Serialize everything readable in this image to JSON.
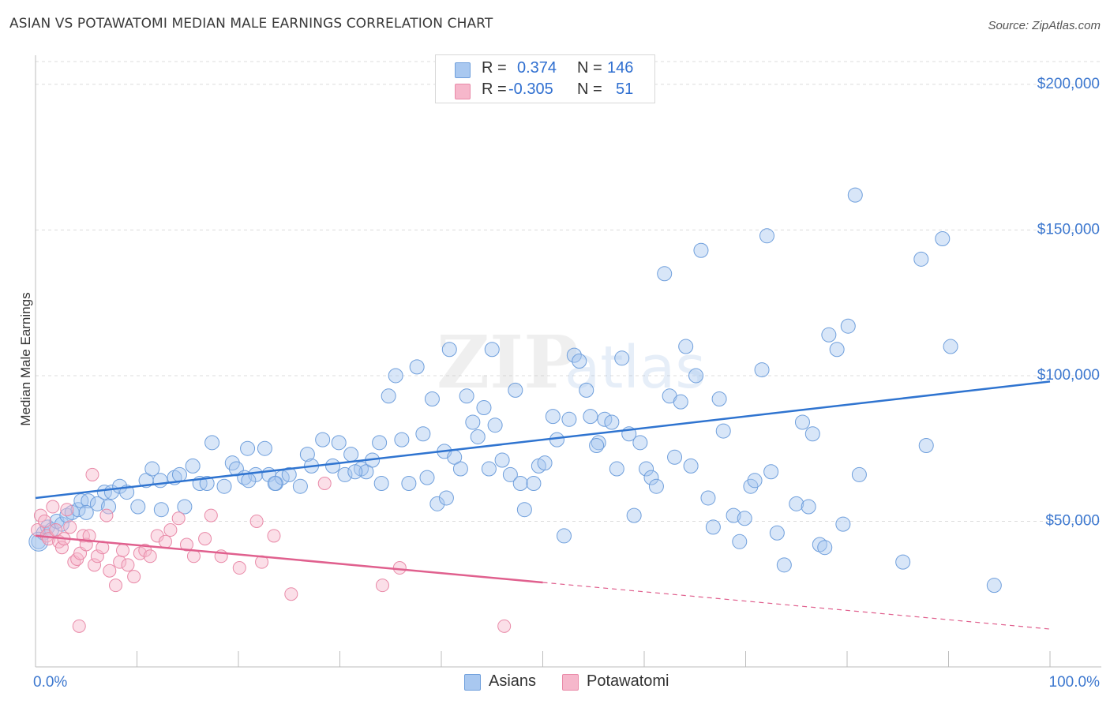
{
  "title": "ASIAN VS POTAWATOMI MEDIAN MALE EARNINGS CORRELATION CHART",
  "source": "Source: ZipAtlas.com",
  "watermark": {
    "zip": "ZIP",
    "atlas": "atlas"
  },
  "legend": {
    "asians": {
      "r_label": "R =",
      "r_value": "0.374",
      "n_label": "N =",
      "n_value": "146"
    },
    "potawatomi": {
      "r_label": "R =",
      "r_value": "-0.305",
      "n_label": "N =",
      "n_value": "51"
    }
  },
  "bottom_legend": {
    "asians": "Asians",
    "potawatomi": "Potawatomi"
  },
  "colors": {
    "asians_fill": "#a9c8f0",
    "asians_stroke": "#6f9fdc",
    "asians_line": "#2f74d0",
    "potawatomi_fill": "#f6b7cb",
    "potawatomi_stroke": "#e98aa8",
    "potawatomi_line": "#e0608e",
    "tick_label": "#3d78cf"
  },
  "chart_data": {
    "type": "scatter",
    "title": "ASIAN VS POTAWATOMI MEDIAN MALE EARNINGS CORRELATION CHART",
    "xlabel": "",
    "ylabel": "Median Male Earnings",
    "xlim": [
      0,
      100
    ],
    "ylim": [
      0,
      210000
    ],
    "x_tick_labels": [
      "0.0%",
      "100.0%"
    ],
    "y_ticks": [
      50000,
      100000,
      150000,
      200000
    ],
    "y_tick_labels": [
      "$50,000",
      "$100,000",
      "$150,000",
      "$200,000"
    ],
    "grid": true,
    "legend_position": "top-center",
    "series": [
      {
        "name": "Asians",
        "r": 0.374,
        "n": 146,
        "trend": {
          "x": [
            0,
            100
          ],
          "y": [
            58000,
            98000
          ]
        },
        "points": [
          [
            0.3,
            43000
          ],
          [
            0.8,
            46000
          ],
          [
            1.2,
            48000
          ],
          [
            1.6,
            47000
          ],
          [
            2.1,
            50000
          ],
          [
            2.6,
            49000
          ],
          [
            3.1,
            52000
          ],
          [
            3.6,
            53000
          ],
          [
            4.2,
            54000
          ],
          [
            4.5,
            57000
          ],
          [
            5.2,
            57000
          ],
          [
            6.1,
            56000
          ],
          [
            6.8,
            60000
          ],
          [
            7.5,
            60000
          ],
          [
            8.3,
            62000
          ],
          [
            9.0,
            60000
          ],
          [
            10.1,
            55000
          ],
          [
            10.9,
            64000
          ],
          [
            11.5,
            68000
          ],
          [
            12.3,
            64000
          ],
          [
            13.7,
            65000
          ],
          [
            14.7,
            55000
          ],
          [
            15.5,
            69000
          ],
          [
            16.2,
            63000
          ],
          [
            16.9,
            63000
          ],
          [
            17.4,
            77000
          ],
          [
            18.6,
            62000
          ],
          [
            19.4,
            70000
          ],
          [
            19.8,
            68000
          ],
          [
            20.6,
            65000
          ],
          [
            20.9,
            75000
          ],
          [
            21.7,
            66000
          ],
          [
            22.6,
            75000
          ],
          [
            23.0,
            66000
          ],
          [
            23.7,
            63000
          ],
          [
            24.3,
            65000
          ],
          [
            25.0,
            66000
          ],
          [
            26.1,
            62000
          ],
          [
            26.8,
            73000
          ],
          [
            27.2,
            69000
          ],
          [
            28.3,
            78000
          ],
          [
            29.3,
            69000
          ],
          [
            29.9,
            77000
          ],
          [
            30.5,
            66000
          ],
          [
            31.1,
            73000
          ],
          [
            32.1,
            68000
          ],
          [
            32.6,
            67000
          ],
          [
            33.2,
            71000
          ],
          [
            33.9,
            77000
          ],
          [
            34.1,
            63000
          ],
          [
            34.8,
            93000
          ],
          [
            35.5,
            100000
          ],
          [
            36.1,
            78000
          ],
          [
            36.8,
            63000
          ],
          [
            37.6,
            103000
          ],
          [
            38.2,
            80000
          ],
          [
            38.6,
            65000
          ],
          [
            39.1,
            92000
          ],
          [
            39.6,
            56000
          ],
          [
            40.3,
            74000
          ],
          [
            40.8,
            109000
          ],
          [
            41.3,
            72000
          ],
          [
            41.9,
            68000
          ],
          [
            42.5,
            93000
          ],
          [
            43.1,
            84000
          ],
          [
            43.6,
            79000
          ],
          [
            44.2,
            89000
          ],
          [
            45.0,
            109000
          ],
          [
            45.3,
            83000
          ],
          [
            46.0,
            71000
          ],
          [
            46.8,
            66000
          ],
          [
            47.3,
            95000
          ],
          [
            47.8,
            63000
          ],
          [
            48.2,
            54000
          ],
          [
            49.1,
            63000
          ],
          [
            49.6,
            69000
          ],
          [
            50.2,
            70000
          ],
          [
            51.0,
            86000
          ],
          [
            51.4,
            78000
          ],
          [
            52.1,
            45000
          ],
          [
            52.6,
            85000
          ],
          [
            53.1,
            107000
          ],
          [
            53.6,
            105000
          ],
          [
            54.3,
            95000
          ],
          [
            54.7,
            86000
          ],
          [
            55.5,
            77000
          ],
          [
            56.1,
            85000
          ],
          [
            56.8,
            84000
          ],
          [
            57.3,
            68000
          ],
          [
            57.8,
            106000
          ],
          [
            58.5,
            80000
          ],
          [
            59.0,
            52000
          ],
          [
            59.6,
            77000
          ],
          [
            60.2,
            68000
          ],
          [
            60.7,
            65000
          ],
          [
            61.2,
            62000
          ],
          [
            62.0,
            135000
          ],
          [
            62.5,
            93000
          ],
          [
            63.0,
            72000
          ],
          [
            63.6,
            91000
          ],
          [
            64.1,
            110000
          ],
          [
            64.6,
            69000
          ],
          [
            65.1,
            100000
          ],
          [
            65.6,
            143000
          ],
          [
            66.3,
            58000
          ],
          [
            66.8,
            48000
          ],
          [
            67.4,
            92000
          ],
          [
            67.8,
            81000
          ],
          [
            68.8,
            52000
          ],
          [
            69.4,
            43000
          ],
          [
            69.9,
            51000
          ],
          [
            70.5,
            62000
          ],
          [
            70.9,
            64000
          ],
          [
            71.6,
            102000
          ],
          [
            72.1,
            148000
          ],
          [
            72.5,
            67000
          ],
          [
            73.1,
            46000
          ],
          [
            73.8,
            35000
          ],
          [
            75.0,
            56000
          ],
          [
            75.6,
            84000
          ],
          [
            76.2,
            55000
          ],
          [
            76.6,
            80000
          ],
          [
            77.3,
            42000
          ],
          [
            77.8,
            41000
          ],
          [
            78.2,
            114000
          ],
          [
            79.0,
            109000
          ],
          [
            79.6,
            49000
          ],
          [
            80.1,
            117000
          ],
          [
            80.8,
            162000
          ],
          [
            81.2,
            66000
          ],
          [
            85.5,
            36000
          ],
          [
            87.3,
            140000
          ],
          [
            87.8,
            76000
          ],
          [
            89.4,
            147000
          ],
          [
            90.2,
            110000
          ],
          [
            94.5,
            28000
          ],
          [
            55.3,
            76000
          ],
          [
            40.5,
            58000
          ],
          [
            23.6,
            63000
          ],
          [
            12.4,
            54000
          ],
          [
            5.0,
            53000
          ],
          [
            7.2,
            55000
          ],
          [
            14.2,
            66000
          ],
          [
            21.0,
            64000
          ],
          [
            31.5,
            67000
          ],
          [
            44.7,
            68000
          ]
        ]
      },
      {
        "name": "Potawatomi",
        "r": -0.305,
        "n": 51,
        "trend": {
          "x": [
            0,
            50
          ],
          "y": [
            45000,
            29000
          ]
        },
        "trend_dashed": {
          "x": [
            50,
            100
          ],
          "y": [
            29000,
            13000
          ]
        },
        "points": [
          [
            0.2,
            47000
          ],
          [
            0.5,
            52000
          ],
          [
            0.9,
            50000
          ],
          [
            1.1,
            45000
          ],
          [
            1.3,
            44000
          ],
          [
            1.7,
            55000
          ],
          [
            2.0,
            47000
          ],
          [
            2.3,
            43000
          ],
          [
            2.6,
            41000
          ],
          [
            2.8,
            44000
          ],
          [
            3.1,
            54000
          ],
          [
            3.4,
            48000
          ],
          [
            3.8,
            36000
          ],
          [
            4.1,
            37000
          ],
          [
            4.4,
            39000
          ],
          [
            4.7,
            45000
          ],
          [
            5.0,
            42000
          ],
          [
            5.3,
            45000
          ],
          [
            5.8,
            35000
          ],
          [
            6.1,
            38000
          ],
          [
            6.6,
            41000
          ],
          [
            7.0,
            52000
          ],
          [
            7.3,
            33000
          ],
          [
            7.9,
            28000
          ],
          [
            8.3,
            36000
          ],
          [
            8.6,
            40000
          ],
          [
            9.1,
            35000
          ],
          [
            9.7,
            31000
          ],
          [
            10.3,
            39000
          ],
          [
            10.8,
            40000
          ],
          [
            11.3,
            38000
          ],
          [
            12.0,
            45000
          ],
          [
            12.8,
            43000
          ],
          [
            13.3,
            47000
          ],
          [
            14.1,
            51000
          ],
          [
            14.9,
            42000
          ],
          [
            15.6,
            38000
          ],
          [
            16.7,
            44000
          ],
          [
            17.3,
            52000
          ],
          [
            18.3,
            38000
          ],
          [
            20.1,
            34000
          ],
          [
            21.8,
            50000
          ],
          [
            22.3,
            36000
          ],
          [
            23.5,
            45000
          ],
          [
            25.2,
            25000
          ],
          [
            28.5,
            63000
          ],
          [
            34.2,
            28000
          ],
          [
            35.9,
            34000
          ],
          [
            46.2,
            14000
          ],
          [
            5.6,
            66000
          ],
          [
            4.3,
            14000
          ]
        ]
      }
    ]
  }
}
